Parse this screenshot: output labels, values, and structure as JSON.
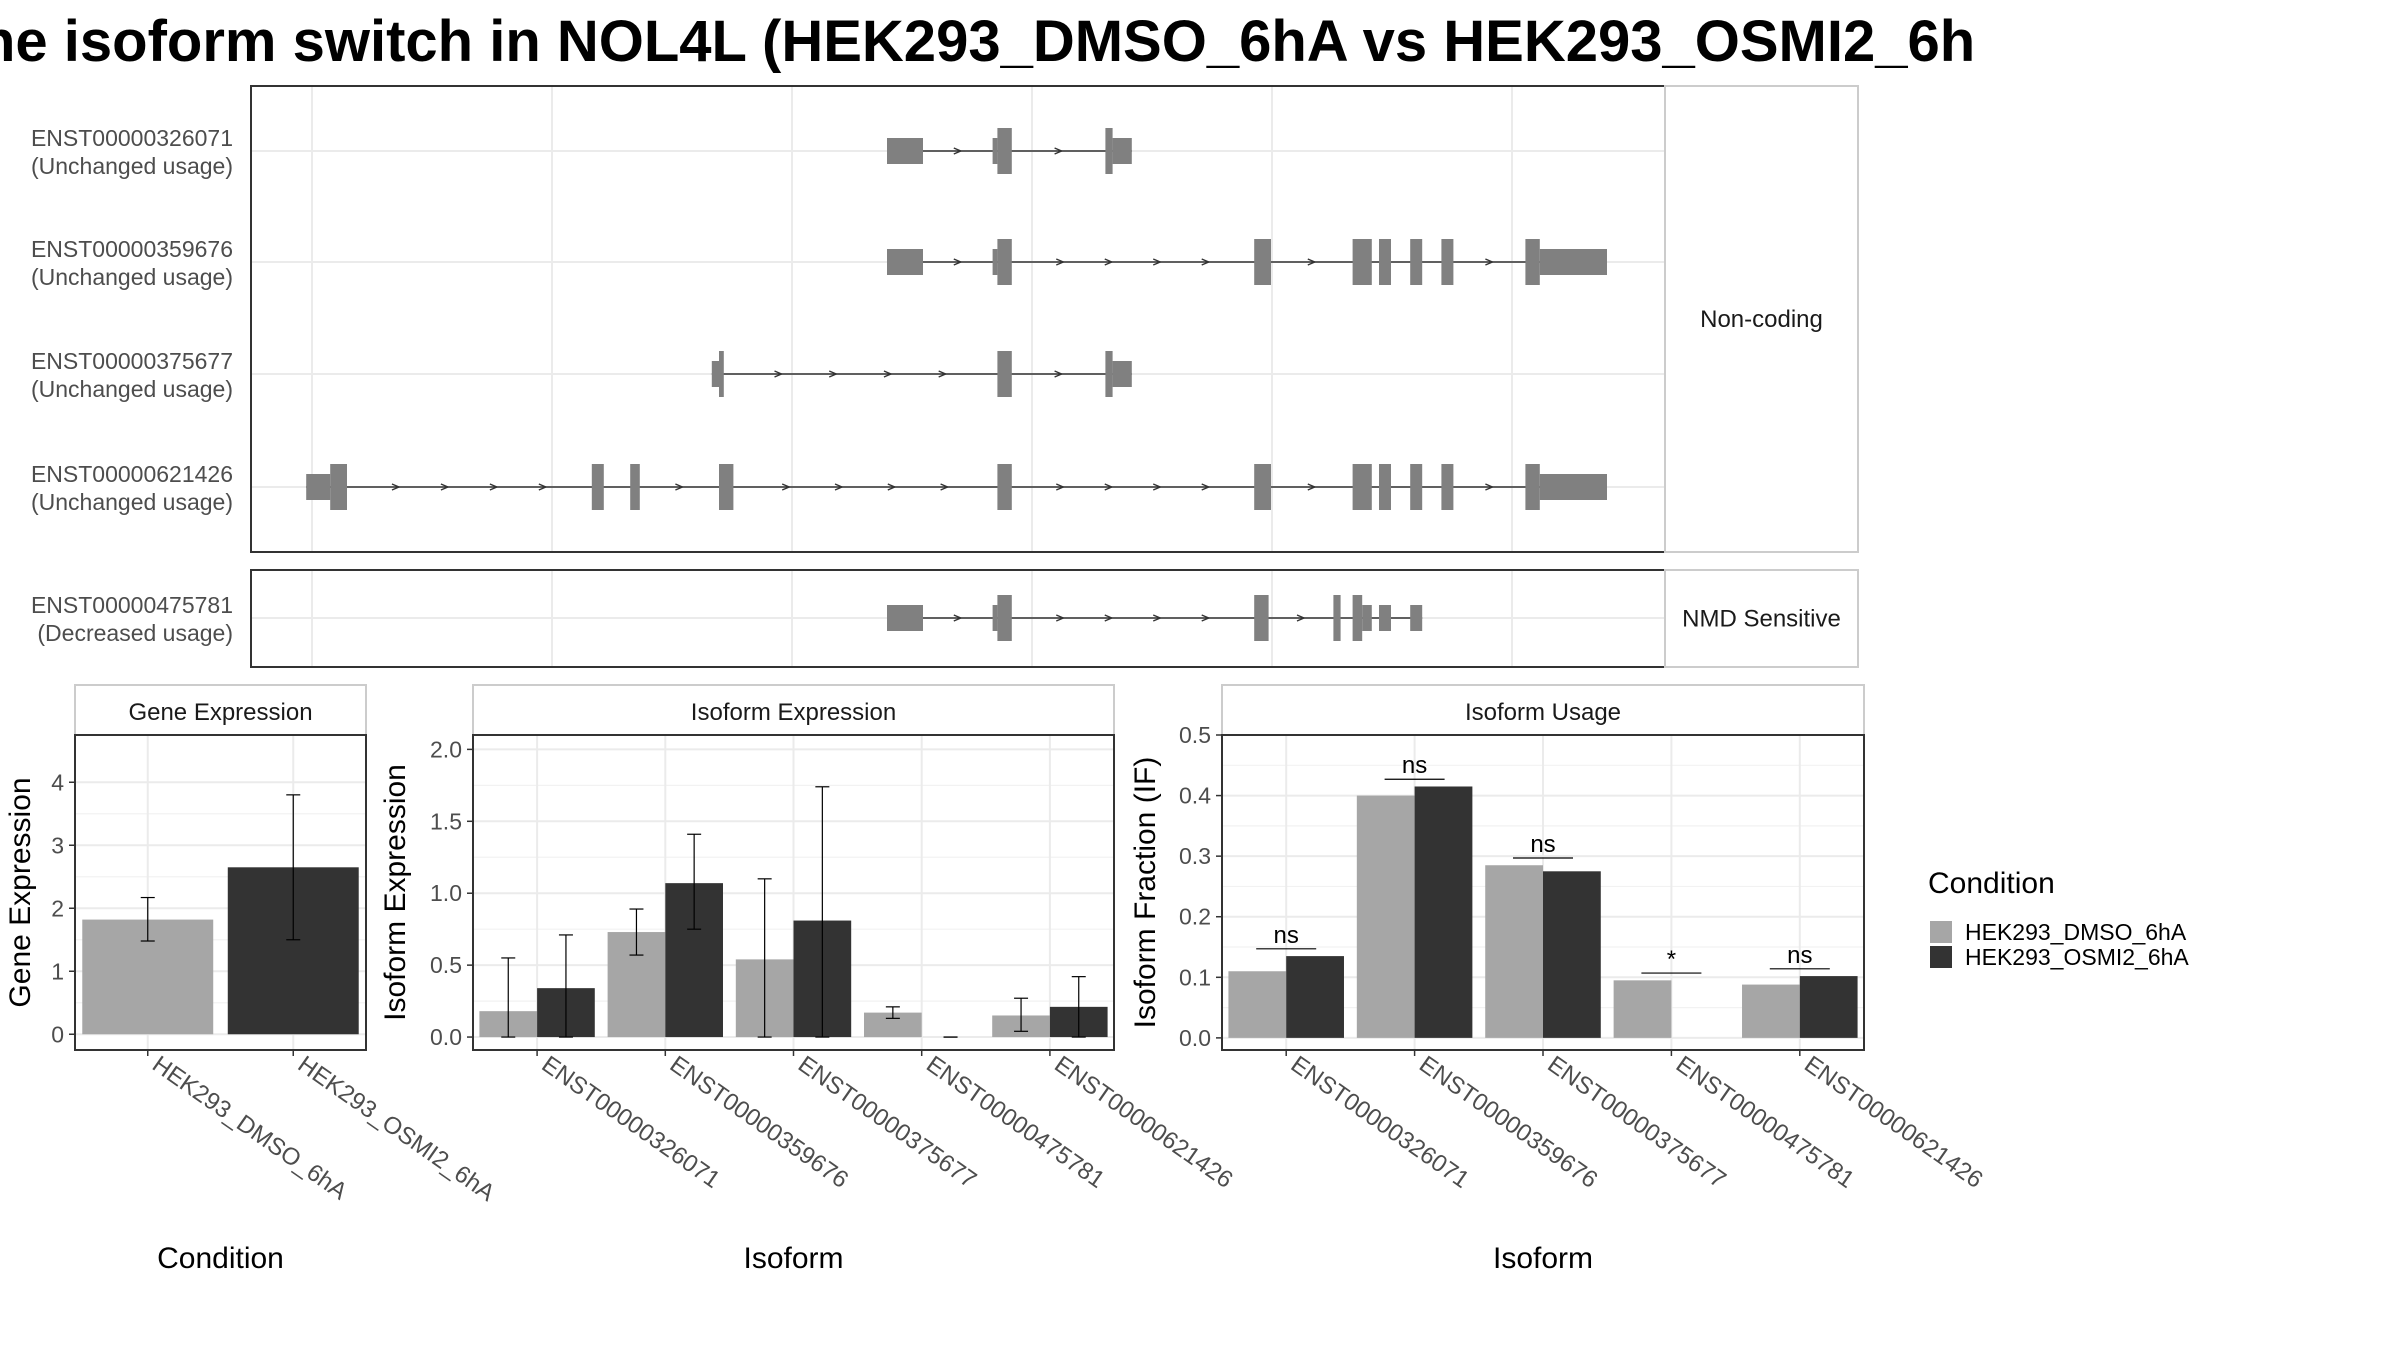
{
  "title": "ne isoform switch in NOL4L (HEK293_DMSO_6hA vs HEK293_OSMI2_6h",
  "colors": {
    "dmso": "#a6a6a6",
    "osmi2": "#333333",
    "exon": "#808080",
    "grid": "#ebebeb",
    "panel_border": "#333333"
  },
  "structure": {
    "groups": [
      {
        "label": "Non-coding",
        "isoforms": [
          {
            "id": "ENST00000326071",
            "usage": "(Unchanged usage)",
            "exons": [
              [
                -26.0,
                -24.5,
                "s"
              ],
              [
                -21.6,
                -21.4,
                "s"
              ],
              [
                -21.4,
                -20.8,
                "t"
              ],
              [
                -16.9,
                -16.6,
                "t"
              ],
              [
                -16.6,
                -15.8,
                "s"
              ]
            ]
          },
          {
            "id": "ENST00000359676",
            "usage": "(Unchanged usage)",
            "exons": [
              [
                -26.0,
                -24.5,
                "s"
              ],
              [
                -21.6,
                -21.4,
                "s"
              ],
              [
                -21.4,
                -20.8,
                "t"
              ],
              [
                -10.7,
                -10.0,
                "t"
              ],
              [
                -6.6,
                -5.8,
                "t"
              ],
              [
                -5.5,
                -5.0,
                "t"
              ],
              [
                -4.2,
                -3.7,
                "t"
              ],
              [
                -2.9,
                -2.4,
                "t"
              ],
              [
                0.6,
                1.2,
                "t"
              ],
              [
                1.2,
                4.0,
                "s"
              ]
            ]
          },
          {
            "id": "ENST00000375677",
            "usage": "(Unchanged usage)",
            "exons": [
              [
                -33.3,
                -33.0,
                "s"
              ],
              [
                -33.0,
                -32.8,
                "t"
              ],
              [
                -21.4,
                -20.8,
                "t"
              ],
              [
                -16.9,
                -16.6,
                "t"
              ],
              [
                -16.6,
                -15.8,
                "s"
              ]
            ]
          },
          {
            "id": "ENST00000621426",
            "usage": "(Unchanged usage)",
            "exons": [
              [
                -50.2,
                -49.2,
                "s"
              ],
              [
                -49.2,
                -48.5,
                "t"
              ],
              [
                -38.3,
                -37.8,
                "t"
              ],
              [
                -36.7,
                -36.3,
                "t"
              ],
              [
                -33.0,
                -32.4,
                "t"
              ],
              [
                -21.4,
                -20.8,
                "t"
              ],
              [
                -10.7,
                -10.0,
                "t"
              ],
              [
                -6.6,
                -5.8,
                "t"
              ],
              [
                -5.5,
                -5.0,
                "t"
              ],
              [
                -4.2,
                -3.7,
                "t"
              ],
              [
                -2.9,
                -2.4,
                "t"
              ],
              [
                0.6,
                1.2,
                "t"
              ],
              [
                1.2,
                4.0,
                "s"
              ]
            ]
          }
        ]
      },
      {
        "label": "NMD Sensitive",
        "isoforms": [
          {
            "id": "ENST00000475781",
            "usage": "(Decreased usage)",
            "exons": [
              [
                -26.0,
                -24.5,
                "s"
              ],
              [
                -21.6,
                -21.4,
                "s"
              ],
              [
                -21.4,
                -20.8,
                "t"
              ],
              [
                -10.7,
                -10.1,
                "t"
              ],
              [
                -7.4,
                -7.1,
                "t"
              ],
              [
                -6.6,
                -6.2,
                "t"
              ],
              [
                -6.2,
                -5.8,
                "s"
              ],
              [
                -5.5,
                -5.0,
                "s"
              ],
              [
                -4.2,
                -3.7,
                "s"
              ]
            ]
          }
        ]
      }
    ]
  },
  "chart_data": [
    {
      "type": "bar",
      "title": "Gene Expression",
      "xlabel": "Condition",
      "ylabel": "Gene Expression",
      "ylim": [
        -0.25,
        4.75
      ],
      "yticks": [
        0,
        1,
        2,
        3,
        4
      ],
      "categories": [
        "HEK293_DMSO_6hA",
        "HEK293_OSMI2_6hA"
      ],
      "values": [
        1.82,
        2.65
      ],
      "error": [
        [
          1.48,
          2.17
        ],
        [
          1.5,
          3.8
        ]
      ]
    },
    {
      "type": "bar",
      "title": "Isoform Expression",
      "xlabel": "Isoform",
      "ylabel": "Isoform Expression",
      "ylim": [
        -0.09,
        2.1
      ],
      "yticks": [
        0.0,
        0.5,
        1.0,
        1.5,
        2.0
      ],
      "categories": [
        "ENST00000326071",
        "ENST00000359676",
        "ENST00000375677",
        "ENST00000475781",
        "ENST00000621426"
      ],
      "series": [
        {
          "name": "HEK293_DMSO_6hA",
          "values": [
            0.18,
            0.73,
            0.54,
            0.17,
            0.15
          ],
          "error": [
            [
              0.0,
              0.55
            ],
            [
              0.57,
              0.89
            ],
            [
              0.0,
              1.1
            ],
            [
              0.13,
              0.21
            ],
            [
              0.04,
              0.27
            ]
          ]
        },
        {
          "name": "HEK293_OSMI2_6hA",
          "values": [
            0.34,
            1.07,
            0.81,
            0.0,
            0.21
          ],
          "error": [
            [
              0.0,
              0.71
            ],
            [
              0.75,
              1.41
            ],
            [
              0.0,
              1.74
            ],
            [
              0.0,
              0.0
            ],
            [
              0.0,
              0.42
            ]
          ]
        }
      ]
    },
    {
      "type": "bar",
      "title": "Isoform Usage",
      "xlabel": "Isoform",
      "ylabel": "Isoform Fraction (IF)",
      "ylim": [
        -0.02,
        0.5
      ],
      "yticks": [
        0.0,
        0.1,
        0.2,
        0.3,
        0.4,
        0.5
      ],
      "categories": [
        "ENST00000326071",
        "ENST00000359676",
        "ENST00000375677",
        "ENST00000475781",
        "ENST00000621426"
      ],
      "series": [
        {
          "name": "HEK293_DMSO_6hA",
          "values": [
            0.11,
            0.4,
            0.285,
            0.095,
            0.088
          ]
        },
        {
          "name": "HEK293_OSMI2_6hA",
          "values": [
            0.135,
            0.415,
            0.275,
            0.0,
            0.102
          ]
        }
      ],
      "significance": [
        "ns",
        "ns",
        "ns",
        "*",
        "ns"
      ]
    }
  ],
  "legend": {
    "title": "Condition",
    "entries": [
      "HEK293_DMSO_6hA",
      "HEK293_OSMI2_6hA"
    ]
  }
}
